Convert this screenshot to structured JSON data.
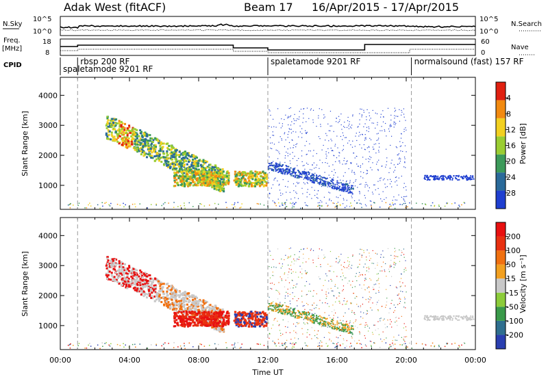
{
  "header": {
    "station": "Adak West (fitACF)",
    "beam": "Beam 17",
    "dates": "16/Apr/2015 - 17/Apr/2015"
  },
  "top_panel": {
    "left_label": "N.Sky",
    "right_label": "N.Search",
    "left_ticks": [
      "10^5",
      "10^0"
    ],
    "right_ticks": [
      "10^5",
      "10^0"
    ]
  },
  "freq_panel": {
    "left_label_1": "Freq.",
    "left_label_2": "[MHz]",
    "right_label": "Nave",
    "left_ticks": [
      "18",
      "8"
    ],
    "right_ticks": [
      "60",
      "0"
    ]
  },
  "cpid": {
    "label": "CPID",
    "segments": [
      {
        "start_hr": 0,
        "text": "spaletamode 9201 RF",
        "row": 2
      },
      {
        "start_hr": 1,
        "text": "rbsp 200 RF",
        "row": 1
      },
      {
        "start_hr": 12,
        "text": "spaletamode 9201 RF",
        "row": 1
      },
      {
        "start_hr": 20.3,
        "text": "normalsound (fast) 157 RF",
        "row": 1
      }
    ]
  },
  "chart_data": [
    {
      "type": "heatmap",
      "panel": "power",
      "ylabel": "Slant Range [km]",
      "ylim": [
        200,
        4600
      ],
      "yticks": [
        "1000",
        "2000",
        "3000",
        "4000"
      ],
      "colorbar_label": "Power [dB]",
      "colorbar_ticks": [
        "4",
        "8",
        "12",
        "16",
        "20",
        "24",
        "28"
      ],
      "colors": [
        "#1f3fd0",
        "#2a6a9a",
        "#3c9a5a",
        "#9acd32",
        "#f2d020",
        "#f28a10",
        "#e02010"
      ]
    },
    {
      "type": "heatmap",
      "panel": "velocity",
      "ylabel": "Slant Range [km]",
      "ylim": [
        200,
        4600
      ],
      "yticks": [
        "1000",
        "2000",
        "3000",
        "4000"
      ],
      "colorbar_label": "Velocity [m s⁻¹]",
      "colorbar_ticks": [
        "200",
        "100",
        "50",
        "15",
        "-15",
        "-50",
        "-100",
        "-200"
      ],
      "colors": [
        "#2a3fb0",
        "#2f6f8f",
        "#3a9a4a",
        "#8ccc3a",
        "#c8c8c8",
        "#f2a020",
        "#f07010",
        "#e83010",
        "#e81010"
      ]
    }
  ],
  "xaxis": {
    "label": "Time UT",
    "ticks": [
      "00:00",
      "04:00",
      "08:00",
      "12:00",
      "16:00",
      "20:00",
      "00:00"
    ],
    "range_hr": [
      0,
      24
    ]
  }
}
